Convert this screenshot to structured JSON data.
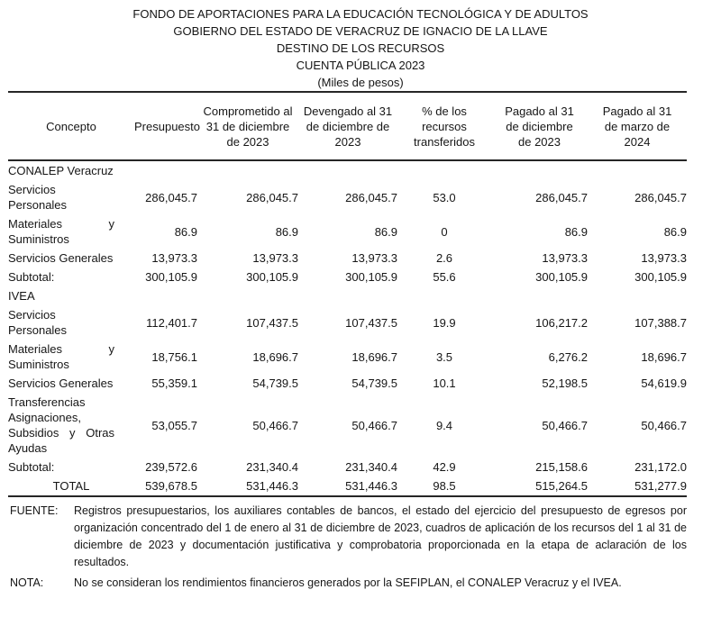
{
  "header": {
    "lines": [
      "FONDO DE APORTACIONES PARA LA EDUCACIÓN TECNOLÓGICA Y DE ADULTOS",
      "GOBIERNO DEL ESTADO DE VERACRUZ DE IGNACIO DE LA LLAVE",
      "DESTINO DE LOS RECURSOS",
      "CUENTA PÚBLICA 2023",
      "(Miles de pesos)"
    ]
  },
  "table": {
    "columns": [
      "Concepto",
      "Presupuesto",
      "Comprometido al 31 de diciembre de 2023",
      "Devengado al 31 de diciembre de 2023",
      "% de los recursos transferidos",
      "Pagado al 31 de diciembre de 2023",
      "Pagado al 31 de marzo de 2024"
    ],
    "sections": [
      {
        "name": "CONALEP Veracruz",
        "rows": [
          {
            "concepto": "Servicios Personales",
            "values": [
              "286,045.7",
              "286,045.7",
              "286,045.7",
              "53.0",
              "286,045.7",
              "286,045.7"
            ]
          },
          {
            "concepto": "Materiales y Suministros",
            "values": [
              "86.9",
              "86.9",
              "86.9",
              "0",
              "86.9",
              "86.9"
            ]
          },
          {
            "concepto": "Servicios Generales",
            "values": [
              "13,973.3",
              "13,973.3",
              "13,973.3",
              "2.6",
              "13,973.3",
              "13,973.3"
            ]
          }
        ],
        "subtotal": {
          "label": "Subtotal:",
          "values": [
            "300,105.9",
            "300,105.9",
            "300,105.9",
            "55.6",
            "300,105.9",
            "300,105.9"
          ]
        }
      },
      {
        "name": "IVEA",
        "rows": [
          {
            "concepto": "Servicios Personales",
            "values": [
              "112,401.7",
              "107,437.5",
              "107,437.5",
              "19.9",
              "106,217.2",
              "107,388.7"
            ]
          },
          {
            "concepto": "Materiales y Suministros",
            "values": [
              "18,756.1",
              "18,696.7",
              "18,696.7",
              "3.5",
              "6,276.2",
              "18,696.7"
            ]
          },
          {
            "concepto": "Servicios Generales",
            "values": [
              "55,359.1",
              "54,739.5",
              "54,739.5",
              "10.1",
              "52,198.5",
              "54,619.9"
            ]
          },
          {
            "concepto": "Transferencias Asignaciones, Subsidios y Otras Ayudas",
            "values": [
              "53,055.7",
              "50,466.7",
              "50,466.7",
              "9.4",
              "50,466.7",
              "50,466.7"
            ]
          }
        ],
        "subtotal": {
          "label": "Subtotal:",
          "values": [
            "239,572.6",
            "231,340.4",
            "231,340.4",
            "42.9",
            "215,158.6",
            "231,172.0"
          ]
        }
      }
    ],
    "total": {
      "label": "TOTAL",
      "values": [
        "539,678.5",
        "531,446.3",
        "531,446.3",
        "98.5",
        "515,264.5",
        "531,277.9"
      ]
    }
  },
  "footnotes": [
    {
      "label": "FUENTE:",
      "text": "Registros presupuestarios, los auxiliares contables de bancos, el estado del ejercicio del presupuesto de egresos por organización concentrado del 1 de enero al 31 de diciembre de 2023, cuadros de aplicación de los recursos del 1 al 31 de diciembre de 2023 y documentación justificativa y comprobatoria proporcionada en la etapa de aclaración de los resultados."
    },
    {
      "label": "NOTA:",
      "text": "No se consideran los rendimientos financieros generados por la SEFIPLAN, el CONALEP Veracruz y el IVEA."
    }
  ]
}
